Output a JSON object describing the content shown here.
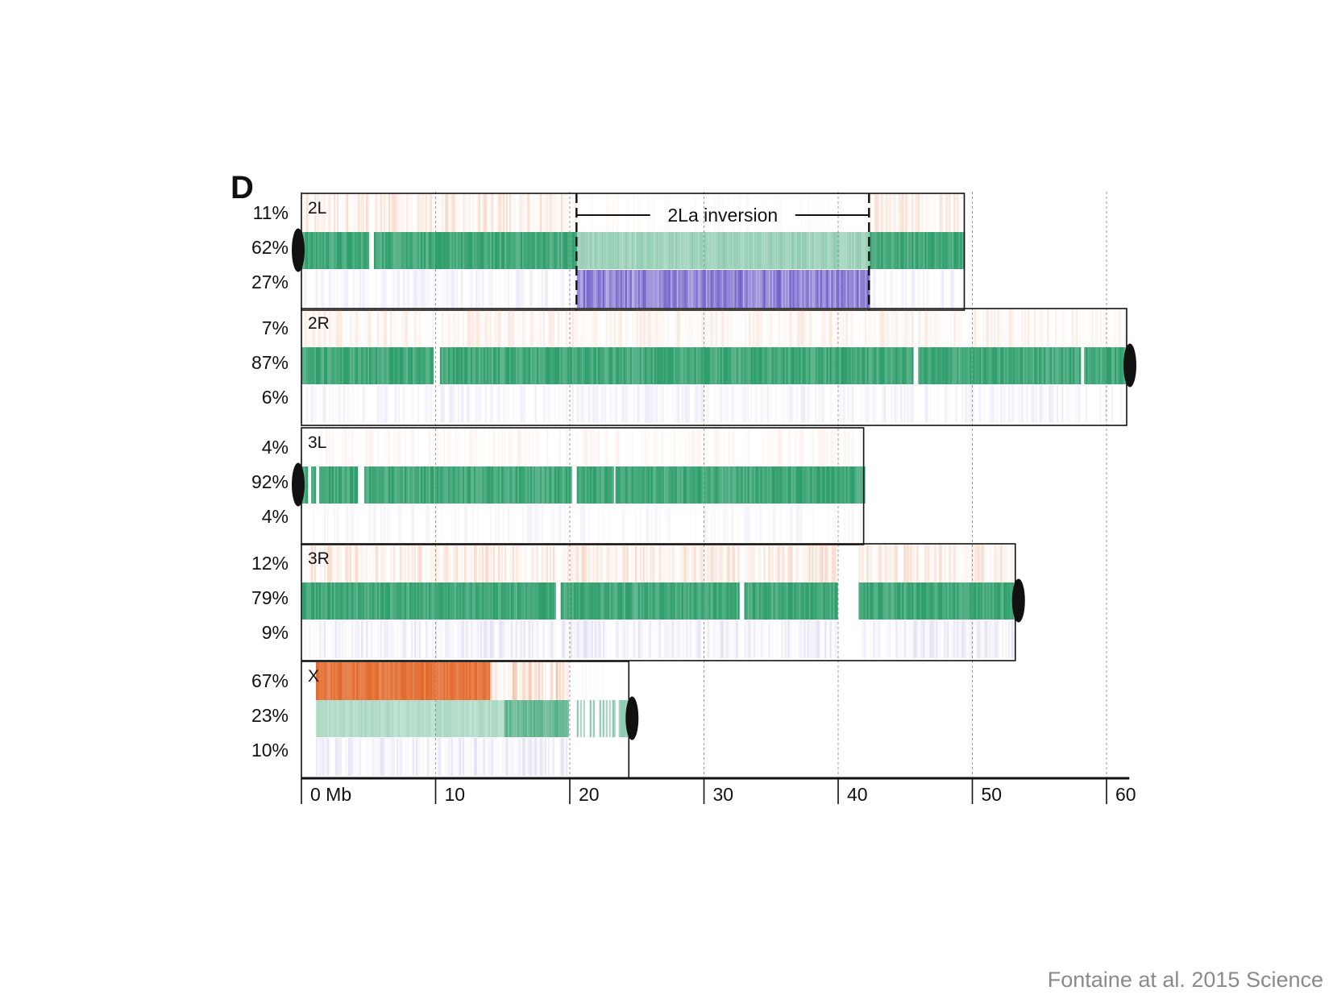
{
  "chart_data": {
    "type": "heatmap",
    "panel_letter": "D",
    "x_axis": {
      "unit": "Mb",
      "ticks": [
        0,
        10,
        20,
        30,
        40,
        50,
        60
      ],
      "tick_labels": [
        "0 Mb",
        "10",
        "20",
        "30",
        "40",
        "50",
        "60"
      ],
      "range": [
        0,
        62
      ],
      "grid": "dotted vertical lines at every 10 Mb"
    },
    "track_colors": {
      "top": "#e2692a",
      "middle": "#2e9e6b",
      "bottom": "#6a5ac8"
    },
    "chromosomes": [
      {
        "name": "2L",
        "length_mb": 49.4,
        "centromere": "left",
        "percentages": [
          "11%",
          "62%",
          "27%"
        ],
        "gaps_mb": [
          [
            5.0,
            5.4
          ]
        ]
      },
      {
        "name": "2R",
        "length_mb": 61.5,
        "centromere": "right",
        "percentages": [
          "7%",
          "87%",
          "6%"
        ],
        "gaps_mb": [
          [
            9.8,
            10.2
          ],
          [
            45.5,
            45.9
          ],
          [
            58.0,
            58.2
          ]
        ]
      },
      {
        "name": "3L",
        "length_mb": 41.9,
        "centromere": "left",
        "percentages": [
          "4%",
          "92%",
          "4%"
        ],
        "gaps_mb": [
          [
            0.4,
            0.7
          ],
          [
            1.0,
            1.3
          ],
          [
            4.2,
            4.6
          ],
          [
            20.1,
            20.4
          ],
          [
            23.2,
            23.4
          ]
        ]
      },
      {
        "name": "3R",
        "length_mb": 53.2,
        "centromere": "right",
        "percentages": [
          "12%",
          "79%",
          "9%"
        ],
        "gaps_mb": [
          [
            18.9,
            19.2
          ],
          [
            32.6,
            32.9
          ],
          [
            39.9,
            41.5
          ]
        ]
      },
      {
        "name": "X",
        "length_mb": 24.4,
        "centromere": "right",
        "percentages": [
          "67%",
          "23%",
          "10%"
        ],
        "gaps_mb": [
          [
            0.0,
            1.0
          ],
          [
            19.9,
            20.5
          ]
        ]
      }
    ],
    "annotation": {
      "label": "2La inversion",
      "chromosome": "2L",
      "start_mb": 20.5,
      "end_mb": 42.3
    }
  },
  "credit": "Fontaine at al. 2015 Science"
}
